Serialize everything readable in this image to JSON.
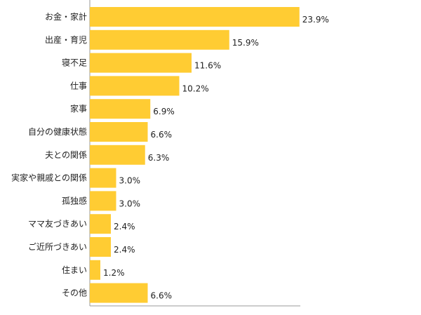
{
  "chart_data": {
    "type": "bar",
    "orientation": "horizontal",
    "categories": [
      "お金・家計",
      "出産・育児",
      "寝不足",
      "仕事",
      "家事",
      "自分の健康状態",
      "夫との関係",
      "実家や親戚との関係",
      "孤独感",
      "ママ友づきあい",
      "ご近所づきあい",
      "住まい",
      "その他"
    ],
    "values": [
      23.9,
      15.9,
      11.6,
      10.2,
      6.9,
      6.6,
      6.3,
      3.0,
      3.0,
      2.4,
      2.4,
      1.2,
      6.6
    ],
    "value_labels": [
      "23.9%",
      "15.9%",
      "11.6%",
      "10.2%",
      "6.9%",
      "6.6%",
      "6.3%",
      "3.0%",
      "3.0%",
      "2.4%",
      "2.4%",
      "1.2%",
      "6.6%"
    ],
    "unit": "%",
    "xlim": [
      0,
      24
    ],
    "grid": false,
    "legend": "none",
    "colors": {
      "bar": "#ffcc33",
      "axis": "#999999",
      "text": "#222222"
    }
  }
}
